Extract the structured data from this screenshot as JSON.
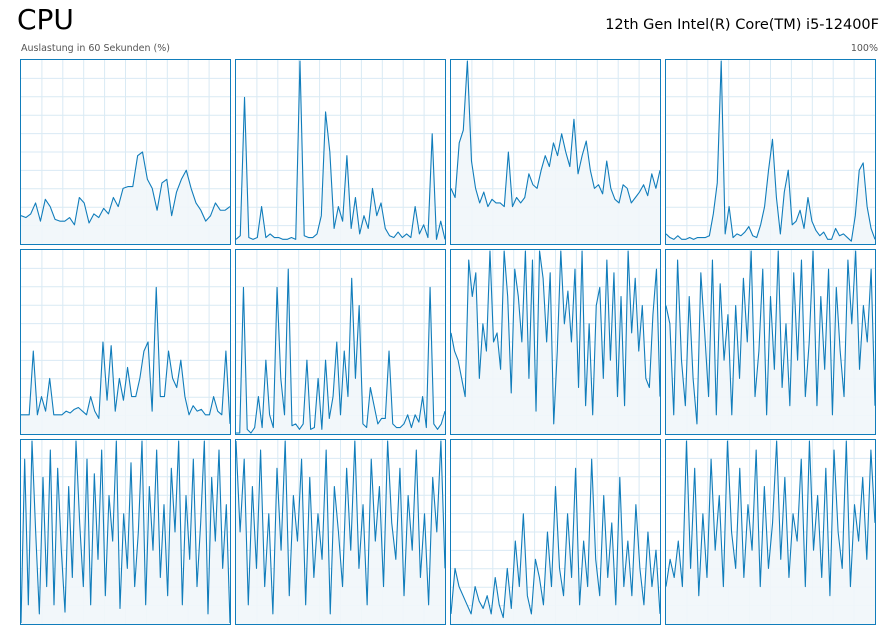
{
  "header": {
    "title": "CPU",
    "cpu_name": "12th Gen Intel(R) Core(TM) i5-12400F",
    "axis_label": "Auslastung in 60 Sekunden (%)",
    "axis_max": "100%"
  },
  "colors": {
    "line": "#117dbb",
    "fill": "#f1f6fa",
    "grid": "#d9eaf4",
    "border": "#117dbb"
  },
  "chart_data": {
    "type": "area",
    "ylim": [
      0,
      100
    ],
    "x_span_seconds": 60,
    "grid": true,
    "series": [
      {
        "values": [
          15,
          14,
          16,
          22,
          12,
          24,
          20,
          13,
          12,
          12,
          14,
          10,
          25,
          22,
          11,
          16,
          14,
          19,
          16,
          25,
          20,
          30,
          31,
          31,
          48,
          50,
          35,
          30,
          18,
          33,
          35,
          15,
          28,
          35,
          40,
          30,
          22,
          18,
          12,
          15,
          22,
          18,
          18,
          20
        ]
      },
      {
        "values": [
          2,
          4,
          80,
          3,
          2,
          3,
          20,
          3,
          5,
          3,
          3,
          2,
          2,
          3,
          2,
          100,
          4,
          3,
          3,
          5,
          15,
          72,
          50,
          8,
          20,
          12,
          48,
          8,
          25,
          5,
          15,
          8,
          30,
          15,
          22,
          8,
          4,
          3,
          6,
          3,
          5,
          3,
          20,
          5,
          10,
          3,
          60,
          2,
          12,
          2
        ]
      },
      {
        "values": [
          30,
          25,
          55,
          62,
          100,
          45,
          30,
          22,
          28,
          20,
          24,
          22,
          22,
          20,
          50,
          20,
          25,
          22,
          25,
          38,
          32,
          30,
          40,
          48,
          42,
          55,
          48,
          60,
          50,
          42,
          68,
          38,
          48,
          56,
          40,
          30,
          32,
          27,
          45,
          30,
          24,
          22,
          32,
          30,
          22,
          25,
          28,
          32,
          26,
          38,
          30,
          40
        ]
      },
      {
        "values": [
          5,
          3,
          2,
          4,
          2,
          2,
          3,
          2,
          3,
          3,
          3,
          4,
          16,
          33,
          100,
          5,
          20,
          3,
          5,
          4,
          6,
          9,
          4,
          3,
          10,
          20,
          40,
          57,
          25,
          5,
          28,
          40,
          10,
          12,
          18,
          8,
          25,
          12,
          7,
          4,
          6,
          2,
          2,
          8,
          4,
          5,
          3,
          1,
          15,
          40,
          44,
          20,
          8,
          2
        ]
      },
      {
        "values": [
          10,
          10,
          10,
          45,
          10,
          20,
          12,
          30,
          10,
          10,
          10,
          12,
          11,
          13,
          14,
          12,
          10,
          20,
          12,
          8,
          50,
          18,
          48,
          12,
          30,
          18,
          36,
          20,
          20,
          30,
          45,
          50,
          12,
          80,
          20,
          20,
          45,
          30,
          25,
          40,
          20,
          10,
          15,
          12,
          13,
          10,
          10,
          20,
          12,
          10,
          45,
          5
        ]
      },
      {
        "values": [
          0,
          0,
          80,
          2,
          0,
          3,
          20,
          3,
          40,
          10,
          3,
          80,
          30,
          10,
          90,
          4,
          5,
          2,
          5,
          40,
          2,
          3,
          30,
          2,
          40,
          8,
          20,
          50,
          10,
          45,
          20,
          85,
          30,
          70,
          5,
          3,
          25,
          15,
          5,
          8,
          8,
          45,
          5,
          3,
          3,
          5,
          10,
          3,
          10,
          6,
          20,
          3,
          80,
          5,
          2,
          5,
          12
        ]
      },
      {
        "values": [
          55,
          45,
          40,
          30,
          20,
          95,
          75,
          88,
          30,
          60,
          45,
          100,
          50,
          55,
          35,
          100,
          75,
          22,
          90,
          75,
          50,
          100,
          30,
          95,
          12,
          100,
          85,
          50,
          88,
          5,
          45,
          100,
          60,
          78,
          50,
          90,
          25,
          100,
          15,
          60,
          10,
          70,
          80,
          30,
          95,
          40,
          88,
          20,
          75,
          15,
          100,
          55,
          85,
          45,
          70,
          30,
          25,
          65,
          90,
          20
        ]
      },
      {
        "values": [
          70,
          60,
          10,
          95,
          40,
          15,
          75,
          30,
          5,
          88,
          55,
          20,
          95,
          10,
          82,
          40,
          65,
          10,
          70,
          30,
          85,
          50,
          100,
          20,
          45,
          90,
          10,
          75,
          35,
          100,
          25,
          60,
          15,
          88,
          40,
          95,
          20,
          50,
          100,
          15,
          75,
          35,
          90,
          10,
          80,
          45,
          20,
          95,
          60,
          100,
          35,
          70,
          50,
          90,
          15
        ]
      },
      {
        "values": [
          0,
          90,
          10,
          100,
          50,
          5,
          80,
          20,
          95,
          10,
          85,
          40,
          6,
          75,
          25,
          100,
          55,
          20,
          90,
          10,
          82,
          35,
          95,
          15,
          70,
          45,
          100,
          8,
          60,
          30,
          88,
          20,
          50,
          100,
          10,
          75,
          40,
          95,
          25,
          65,
          15,
          85,
          50,
          100,
          10,
          70,
          35,
          90,
          20,
          55,
          100,
          5,
          80,
          45,
          95,
          30,
          65,
          0
        ]
      },
      {
        "values": [
          100,
          50,
          90,
          10,
          75,
          30,
          95,
          20,
          60,
          5,
          85,
          40,
          100,
          15,
          70,
          45,
          90,
          10,
          80,
          25,
          60,
          35,
          95,
          5,
          75,
          50,
          20,
          85,
          40,
          100,
          30,
          65,
          10,
          90,
          45,
          75,
          20,
          100,
          55,
          35,
          85,
          15,
          70,
          40,
          95,
          25,
          60,
          10,
          80,
          50,
          100,
          30
        ]
      },
      {
        "values": [
          5,
          30,
          20,
          15,
          10,
          5,
          20,
          12,
          8,
          15,
          5,
          25,
          10,
          3,
          30,
          8,
          45,
          20,
          60,
          15,
          5,
          35,
          25,
          10,
          50,
          20,
          75,
          30,
          15,
          60,
          25,
          85,
          10,
          45,
          20,
          90,
          35,
          15,
          70,
          25,
          55,
          10,
          80,
          20,
          45,
          15,
          65,
          30,
          10,
          50,
          20,
          40,
          5
        ]
      },
      {
        "values": [
          20,
          35,
          25,
          45,
          20,
          100,
          30,
          85,
          15,
          60,
          25,
          90,
          40,
          70,
          20,
          100,
          50,
          30,
          85,
          25,
          65,
          40,
          95,
          20,
          75,
          30,
          55,
          100,
          35,
          80,
          25,
          60,
          45,
          90,
          20,
          100,
          40,
          70,
          25,
          85,
          15,
          95,
          50,
          30,
          100,
          20,
          65,
          45,
          80,
          35,
          95,
          55
        ]
      }
    ]
  }
}
